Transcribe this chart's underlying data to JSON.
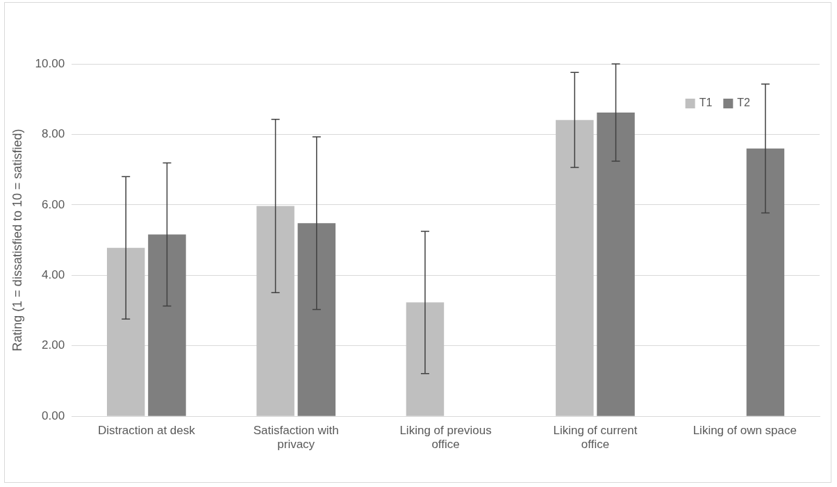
{
  "chart_data": {
    "type": "bar",
    "ylabel": "Rating (1 = dissatisfied to 10 = satisfied)",
    "categories": [
      "Distraction at desk",
      "Satisfaction with privacy",
      "Liking of previous office",
      "Liking of current office",
      "Liking of own space"
    ],
    "series": [
      {
        "name": "T1",
        "color": "#bfbfbf",
        "values": [
          4.78,
          5.97,
          3.23,
          8.41,
          null
        ],
        "errors": [
          2.02,
          2.46,
          2.02,
          1.35,
          null
        ]
      },
      {
        "name": "T2",
        "color": "#7f7f7f",
        "values": [
          5.16,
          5.48,
          null,
          8.62,
          7.6
        ],
        "errors": [
          2.03,
          2.45,
          null,
          1.38,
          1.83
        ]
      }
    ],
    "ylim": [
      0,
      10
    ],
    "yticks": [
      {
        "value": 0,
        "label": "0.00"
      },
      {
        "value": 2,
        "label": "2.00"
      },
      {
        "value": 4,
        "label": "4.00"
      },
      {
        "value": 6,
        "label": "6.00"
      },
      {
        "value": 8,
        "label": "8.00"
      },
      {
        "value": 10,
        "label": "10.00"
      }
    ],
    "grid": "y",
    "legend": "top right"
  }
}
